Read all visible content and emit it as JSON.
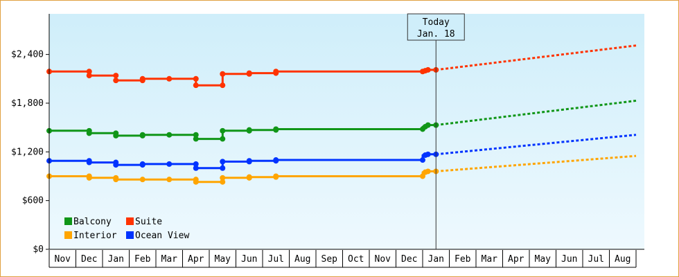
{
  "chart_data": {
    "type": "line",
    "today_label": "Today",
    "today_date": "Jan. 18",
    "y_ticks": [
      {
        "value": 0,
        "label": "$0"
      },
      {
        "value": 600,
        "label": "$600"
      },
      {
        "value": 1200,
        "label": "$1,200"
      },
      {
        "value": 1800,
        "label": "$1,800"
      },
      {
        "value": 2400,
        "label": "$2,400"
      }
    ],
    "ylim": [
      0,
      2400
    ],
    "x_months": [
      "Nov",
      "Dec",
      "Jan",
      "Feb",
      "Mar",
      "Apr",
      "May",
      "Jun",
      "Jul",
      "Aug",
      "Sep",
      "Oct",
      "Nov",
      "Dec",
      "Jan",
      "Feb",
      "Mar",
      "Apr",
      "May",
      "Jun",
      "Jul",
      "Aug"
    ],
    "today_month_index": 14.5,
    "legend": [
      {
        "name": "Balcony",
        "color": "#109618"
      },
      {
        "name": "Suite",
        "color": "#ff3300"
      },
      {
        "name": "Interior",
        "color": "#ffa500"
      },
      {
        "name": "Ocean View",
        "color": "#0033ff"
      }
    ],
    "series": [
      {
        "name": "Suite",
        "color": "#ff3300",
        "history": [
          [
            0,
            2190
          ],
          [
            1.5,
            2190
          ],
          [
            1.5,
            2140
          ],
          [
            2.5,
            2140
          ],
          [
            2.5,
            2080
          ],
          [
            3.5,
            2080
          ],
          [
            3.5,
            2100
          ],
          [
            4.5,
            2100
          ],
          [
            5.5,
            2100
          ],
          [
            5.5,
            2020
          ],
          [
            6.5,
            2020
          ],
          [
            6.5,
            2160
          ],
          [
            7.5,
            2160
          ],
          [
            7.5,
            2170
          ],
          [
            8.5,
            2170
          ],
          [
            8.5,
            2190
          ],
          [
            14,
            2190
          ],
          [
            14,
            2200
          ],
          [
            14.2,
            2210
          ],
          [
            14.5,
            2210
          ]
        ],
        "markers": [
          [
            0,
            2190
          ],
          [
            1.5,
            2190
          ],
          [
            1.5,
            2140
          ],
          [
            2.5,
            2140
          ],
          [
            2.5,
            2080
          ],
          [
            3.5,
            2080
          ],
          [
            3.5,
            2100
          ],
          [
            4.5,
            2100
          ],
          [
            5.5,
            2100
          ],
          [
            5.5,
            2020
          ],
          [
            6.5,
            2020
          ],
          [
            6.5,
            2160
          ],
          [
            7.5,
            2160
          ],
          [
            7.5,
            2170
          ],
          [
            8.5,
            2170
          ],
          [
            8.5,
            2190
          ],
          [
            14,
            2190
          ],
          [
            14.1,
            2200
          ],
          [
            14.2,
            2210
          ],
          [
            14.5,
            2210
          ]
        ],
        "forecast": [
          [
            14.5,
            2210
          ],
          [
            22,
            2510
          ]
        ]
      },
      {
        "name": "Balcony",
        "color": "#109618",
        "history": [
          [
            0,
            1460
          ],
          [
            1.5,
            1460
          ],
          [
            1.5,
            1430
          ],
          [
            2.5,
            1430
          ],
          [
            2.5,
            1400
          ],
          [
            3.5,
            1400
          ],
          [
            3.5,
            1410
          ],
          [
            4.5,
            1410
          ],
          [
            5.5,
            1410
          ],
          [
            5.5,
            1360
          ],
          [
            6.5,
            1360
          ],
          [
            6.5,
            1460
          ],
          [
            7.5,
            1460
          ],
          [
            7.5,
            1470
          ],
          [
            8.5,
            1470
          ],
          [
            8.5,
            1480
          ],
          [
            14,
            1480
          ],
          [
            14,
            1510
          ],
          [
            14.2,
            1530
          ],
          [
            14.5,
            1530
          ]
        ],
        "markers": [
          [
            0,
            1460
          ],
          [
            1.5,
            1460
          ],
          [
            1.5,
            1430
          ],
          [
            2.5,
            1430
          ],
          [
            2.5,
            1400
          ],
          [
            3.5,
            1400
          ],
          [
            3.5,
            1410
          ],
          [
            4.5,
            1410
          ],
          [
            5.5,
            1410
          ],
          [
            5.5,
            1360
          ],
          [
            6.5,
            1360
          ],
          [
            6.5,
            1460
          ],
          [
            7.5,
            1460
          ],
          [
            7.5,
            1470
          ],
          [
            8.5,
            1470
          ],
          [
            8.5,
            1480
          ],
          [
            14,
            1480
          ],
          [
            14.1,
            1510
          ],
          [
            14.2,
            1530
          ],
          [
            14.5,
            1530
          ]
        ],
        "forecast": [
          [
            14.5,
            1530
          ],
          [
            22,
            1830
          ]
        ]
      },
      {
        "name": "Ocean View",
        "color": "#0033ff",
        "history": [
          [
            0,
            1090
          ],
          [
            1.5,
            1090
          ],
          [
            1.5,
            1070
          ],
          [
            2.5,
            1070
          ],
          [
            2.5,
            1040
          ],
          [
            3.5,
            1040
          ],
          [
            3.5,
            1050
          ],
          [
            4.5,
            1050
          ],
          [
            5.5,
            1050
          ],
          [
            5.5,
            1000
          ],
          [
            6.5,
            1000
          ],
          [
            6.5,
            1080
          ],
          [
            7.5,
            1080
          ],
          [
            7.5,
            1090
          ],
          [
            8.5,
            1090
          ],
          [
            8.5,
            1100
          ],
          [
            14,
            1100
          ],
          [
            14,
            1160
          ],
          [
            14.2,
            1170
          ],
          [
            14.5,
            1170
          ]
        ],
        "markers": [
          [
            0,
            1090
          ],
          [
            1.5,
            1090
          ],
          [
            1.5,
            1070
          ],
          [
            2.5,
            1070
          ],
          [
            2.5,
            1040
          ],
          [
            3.5,
            1040
          ],
          [
            3.5,
            1050
          ],
          [
            4.5,
            1050
          ],
          [
            5.5,
            1050
          ],
          [
            5.5,
            1000
          ],
          [
            6.5,
            1000
          ],
          [
            6.5,
            1080
          ],
          [
            7.5,
            1080
          ],
          [
            7.5,
            1090
          ],
          [
            8.5,
            1090
          ],
          [
            8.5,
            1100
          ],
          [
            14,
            1100
          ],
          [
            14.1,
            1160
          ],
          [
            14.2,
            1170
          ],
          [
            14.5,
            1170
          ]
        ],
        "forecast": [
          [
            14.5,
            1170
          ],
          [
            22,
            1410
          ]
        ]
      },
      {
        "name": "Interior",
        "color": "#ffa500",
        "history": [
          [
            0,
            900
          ],
          [
            1.5,
            900
          ],
          [
            1.5,
            880
          ],
          [
            2.5,
            880
          ],
          [
            2.5,
            860
          ],
          [
            3.5,
            860
          ],
          [
            3.5,
            860
          ],
          [
            4.5,
            860
          ],
          [
            5.5,
            860
          ],
          [
            5.5,
            830
          ],
          [
            6.5,
            830
          ],
          [
            6.5,
            880
          ],
          [
            7.5,
            880
          ],
          [
            7.5,
            890
          ],
          [
            8.5,
            890
          ],
          [
            8.5,
            900
          ],
          [
            14,
            900
          ],
          [
            14,
            950
          ],
          [
            14.2,
            960
          ],
          [
            14.5,
            960
          ]
        ],
        "markers": [
          [
            0,
            900
          ],
          [
            1.5,
            900
          ],
          [
            1.5,
            880
          ],
          [
            2.5,
            880
          ],
          [
            2.5,
            860
          ],
          [
            3.5,
            860
          ],
          [
            4.5,
            860
          ],
          [
            5.5,
            860
          ],
          [
            5.5,
            830
          ],
          [
            6.5,
            830
          ],
          [
            6.5,
            880
          ],
          [
            7.5,
            880
          ],
          [
            7.5,
            890
          ],
          [
            8.5,
            890
          ],
          [
            8.5,
            900
          ],
          [
            14,
            900
          ],
          [
            14.1,
            950
          ],
          [
            14.2,
            960
          ],
          [
            14.5,
            960
          ]
        ],
        "forecast": [
          [
            14.5,
            960
          ],
          [
            22,
            1150
          ]
        ]
      }
    ]
  }
}
